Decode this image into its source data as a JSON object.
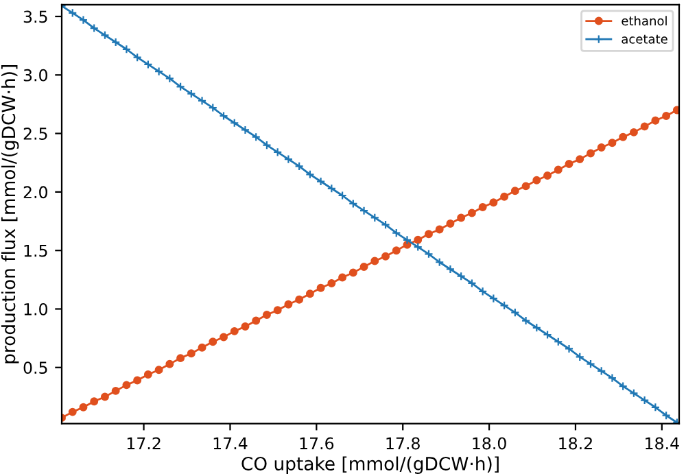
{
  "chart_data": {
    "type": "line",
    "xlabel": "CO uptake [mmol/(gDCW·h)]",
    "ylabel": "production flux [mmol/(gDCW·h)]",
    "x": [
      17.01,
      17.035,
      17.06,
      17.085,
      17.11,
      17.135,
      17.16,
      17.185,
      17.21,
      17.235,
      17.26,
      17.285,
      17.31,
      17.335,
      17.36,
      17.385,
      17.41,
      17.435,
      17.46,
      17.485,
      17.51,
      17.535,
      17.56,
      17.585,
      17.61,
      17.635,
      17.66,
      17.685,
      17.71,
      17.735,
      17.76,
      17.785,
      17.81,
      17.835,
      17.86,
      17.885,
      17.91,
      17.935,
      17.96,
      17.985,
      18.01,
      18.035,
      18.06,
      18.085,
      18.11,
      18.135,
      18.16,
      18.185,
      18.21,
      18.235,
      18.26,
      18.285,
      18.31,
      18.335,
      18.36,
      18.385,
      18.41,
      18.435
    ],
    "series": [
      {
        "name": "ethanol",
        "color": "#e0501e",
        "marker": "circle",
        "values": [
          0.07,
          0.12,
          0.16,
          0.21,
          0.25,
          0.3,
          0.35,
          0.39,
          0.44,
          0.48,
          0.53,
          0.58,
          0.62,
          0.67,
          0.72,
          0.76,
          0.81,
          0.85,
          0.9,
          0.95,
          0.99,
          1.04,
          1.08,
          1.13,
          1.18,
          1.22,
          1.27,
          1.31,
          1.36,
          1.41,
          1.45,
          1.5,
          1.55,
          1.59,
          1.64,
          1.68,
          1.73,
          1.78,
          1.82,
          1.87,
          1.91,
          1.96,
          2.01,
          2.05,
          2.1,
          2.14,
          2.19,
          2.24,
          2.28,
          2.33,
          2.38,
          2.42,
          2.47,
          2.51,
          2.56,
          2.61,
          2.65,
          2.7
        ]
      },
      {
        "name": "acetate",
        "color": "#1f77b4",
        "marker": "cross",
        "values": [
          3.59,
          3.53,
          3.47,
          3.4,
          3.34,
          3.28,
          3.22,
          3.15,
          3.09,
          3.03,
          2.97,
          2.9,
          2.84,
          2.78,
          2.72,
          2.65,
          2.59,
          2.53,
          2.47,
          2.4,
          2.34,
          2.28,
          2.22,
          2.15,
          2.09,
          2.03,
          1.97,
          1.9,
          1.84,
          1.78,
          1.72,
          1.65,
          1.59,
          1.53,
          1.47,
          1.4,
          1.34,
          1.28,
          1.22,
          1.15,
          1.09,
          1.03,
          0.97,
          0.9,
          0.84,
          0.78,
          0.72,
          0.66,
          0.59,
          0.53,
          0.47,
          0.41,
          0.34,
          0.28,
          0.22,
          0.16,
          0.09,
          0.03
        ]
      }
    ],
    "xlim": [
      17.01,
      18.44
    ],
    "ylim": [
      0.02,
      3.6
    ],
    "xticks": [
      17.2,
      17.4,
      17.6,
      17.8,
      {
        "value": 18,
        "label": "18.0"
      },
      18.2,
      18.4
    ],
    "yticks": [
      0.5,
      {
        "value": 1,
        "label": "1.0"
      },
      1.5,
      {
        "value": 2,
        "label": "2.0"
      },
      2.5,
      {
        "value": 3,
        "label": "3.0"
      },
      3.5
    ],
    "line_style": "solid",
    "grid": false,
    "legend": "top right"
  }
}
